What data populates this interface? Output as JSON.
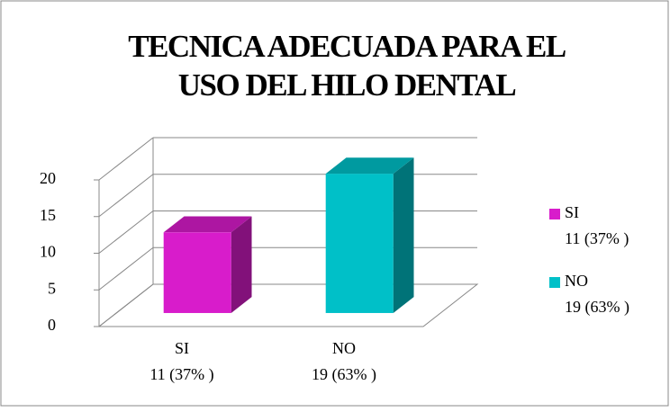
{
  "chart_data": {
    "type": "bar3d",
    "title": [
      "TECNICA ADECUADA PARA EL",
      "USO DEL HILO DENTAL"
    ],
    "categories": [
      "SI",
      "NO"
    ],
    "values": [
      11,
      19
    ],
    "value_labels": [
      "11 (37% )",
      "19 (63% )"
    ],
    "colors": [
      "#d81ccb",
      "#00c0c8"
    ],
    "ylim": [
      0,
      20
    ],
    "yticks": [
      0,
      5,
      10,
      15,
      20
    ],
    "grid": true,
    "legend": "right"
  }
}
